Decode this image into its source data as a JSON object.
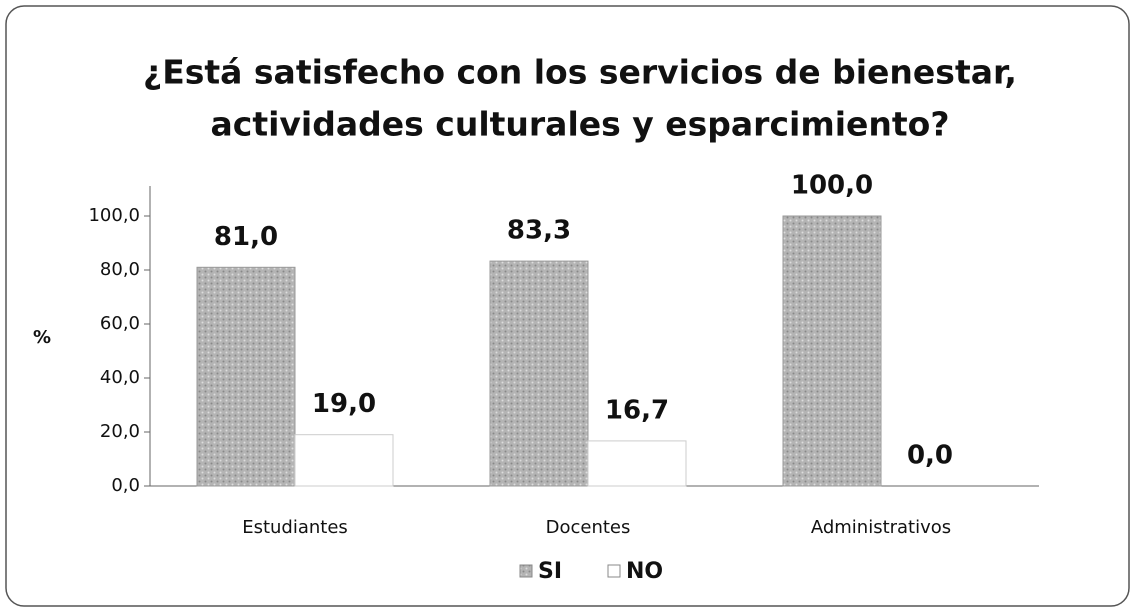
{
  "chart_data": {
    "type": "bar",
    "title": [
      "¿Está satisfecho con los servicios de bienestar,",
      "actividades culturales y esparcimiento?"
    ],
    "y_label": "%",
    "categories": [
      "Estudiantes",
      "Docentes",
      "Administrativos"
    ],
    "series": [
      {
        "name": "SI",
        "color": "#a9a9a9",
        "values": [
          81.0,
          83.3,
          100.0
        ],
        "value_labels": [
          "81,0",
          "83,3",
          "100,0"
        ]
      },
      {
        "name": "NO",
        "color": "#ffffff",
        "values": [
          19.0,
          16.7,
          0.0
        ],
        "value_labels": [
          "19,0",
          "16,7",
          "0,0"
        ]
      }
    ],
    "ylim": [
      0,
      100
    ],
    "yticks": [
      {
        "value": 0,
        "label": "0,0"
      },
      {
        "value": 20,
        "label": "20,0"
      },
      {
        "value": 40,
        "label": "40,0"
      },
      {
        "value": 60,
        "label": "60,0"
      },
      {
        "value": 80,
        "label": "80,0"
      },
      {
        "value": 100,
        "label": "100,0"
      }
    ],
    "legend": "bottom"
  }
}
